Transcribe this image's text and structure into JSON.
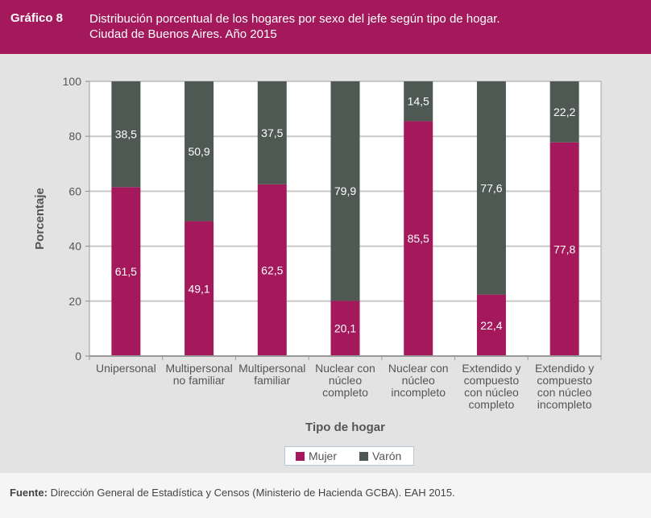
{
  "header": {
    "figure_label": "Gráfico 8",
    "title_line1": "Distribución porcentual de los hogares por sexo del jefe según tipo de hogar.",
    "title_line2": "Ciudad de Buenos Aires. Año 2015"
  },
  "footer": {
    "source_label": "Fuente:",
    "source_text": " Dirección General de Estadística y Censos (Ministerio de Hacienda GCBA). EAH 2015."
  },
  "colors": {
    "header_bg": "#a3195b",
    "mujer": "#a3195b",
    "varon": "#4f5954"
  },
  "chart_data": {
    "type": "bar",
    "stacked": true,
    "title": "Distribución porcentual de los hogares por sexo del jefe según tipo de hogar. Ciudad de Buenos Aires. Año 2015",
    "xlabel": "Tipo de hogar",
    "ylabel": "Porcentaje",
    "ylim": [
      0,
      100
    ],
    "yticks": [
      0,
      20,
      40,
      60,
      80,
      100
    ],
    "grid": true,
    "legend_position": "bottom",
    "categories": [
      [
        "Unipersonal"
      ],
      [
        "Multipersonal",
        "no familiar"
      ],
      [
        "Multipersonal",
        "familiar"
      ],
      [
        "Nuclear con",
        "núcleo",
        "completo"
      ],
      [
        "Nuclear con",
        "núcleo",
        "incompleto"
      ],
      [
        "Extendido y",
        "compuesto",
        "con núcleo",
        "completo"
      ],
      [
        "Extendido y",
        "compuesto",
        "con núcleo",
        "incompleto"
      ]
    ],
    "series": [
      {
        "name": "Mujer",
        "values": [
          61.5,
          49.1,
          62.5,
          20.1,
          85.5,
          22.4,
          77.8
        ],
        "labels": [
          "61,5",
          "49,1",
          "62,5",
          "20,1",
          "85,5",
          "22,4",
          "77,8"
        ]
      },
      {
        "name": "Varón",
        "values": [
          38.5,
          50.9,
          37.5,
          79.9,
          14.5,
          77.6,
          22.2
        ],
        "labels": [
          "38,5",
          "50,9",
          "37,5",
          "79,9",
          "14,5",
          "77,6",
          "22,2"
        ]
      }
    ]
  }
}
